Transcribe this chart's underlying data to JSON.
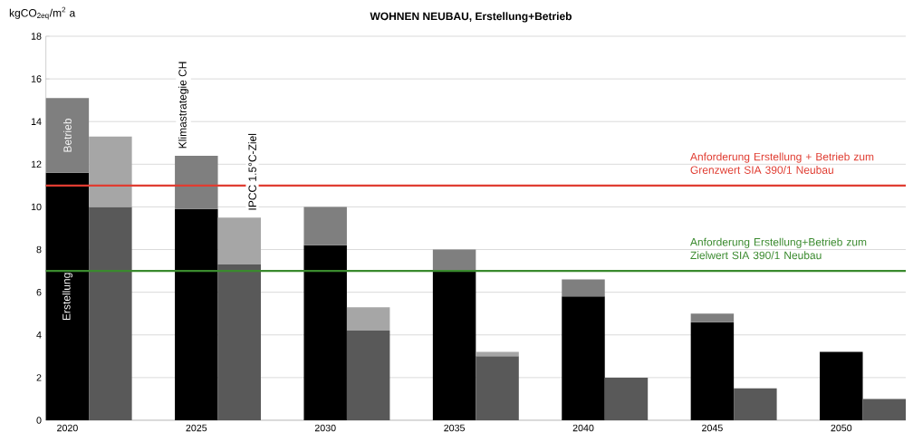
{
  "chart_data": {
    "type": "bar",
    "stacked": true,
    "title": "WOHNEN NEUBAU, Erstellung+Betrieb",
    "ylabel": "kgCO$_{2eq}$/m$^{2}$ a",
    "categories": [
      "2020",
      null,
      "2025",
      null,
      "2030",
      null,
      "2035",
      null,
      "2040",
      null,
      "2045",
      null,
      "2050",
      null
    ],
    "series": [
      {
        "name": "Erstellung",
        "colors": [
          "#000000",
          "#595959",
          "#000000",
          "#595959",
          "#000000",
          "#595959",
          "#000000",
          "#595959",
          "#000000",
          "#595959",
          "#000000",
          "#595959",
          "#000000",
          "#595959"
        ],
        "values": [
          11.6,
          10.0,
          9.9,
          7.3,
          8.2,
          4.2,
          7.0,
          3.0,
          5.8,
          2.0,
          4.6,
          1.5,
          3.2,
          1.0
        ]
      },
      {
        "name": "Betrieb",
        "colors": [
          "#7f7f7f",
          "#a6a6a6",
          "#7f7f7f",
          "#a6a6a6",
          "#7f7f7f",
          "#a6a6a6",
          "#7f7f7f",
          "#a6a6a6",
          "#7f7f7f",
          "#a6a6a6",
          "#7f7f7f",
          "#a6a6a6",
          "#7f7f7f",
          "#a6a6a6"
        ],
        "values": [
          3.5,
          3.3,
          2.5,
          2.2,
          1.8,
          1.1,
          1.0,
          0.2,
          0.8,
          0,
          0.4,
          0,
          0,
          0
        ]
      }
    ],
    "annotations": [
      "Klimastrategie CH",
      "IPCC 1.5°C-Ziel"
    ],
    "ref_lines": [
      {
        "axis": "y",
        "value": 11,
        "label": "Anforderung Erstellung + Betrieb zum Grenzwert SIA 390/1 Neubau",
        "color": "#e03c31"
      },
      {
        "axis": "y",
        "value": 7,
        "label": "Anforderung Erstellung+Betrieb zum Zielwert SIA 390/1 Neubau",
        "color": "#3a8a2e"
      }
    ],
    "ylim": [
      0,
      18
    ],
    "yticks": [
      0,
      2,
      4,
      6,
      8,
      10,
      12,
      14,
      16,
      18
    ],
    "grid": "y"
  }
}
